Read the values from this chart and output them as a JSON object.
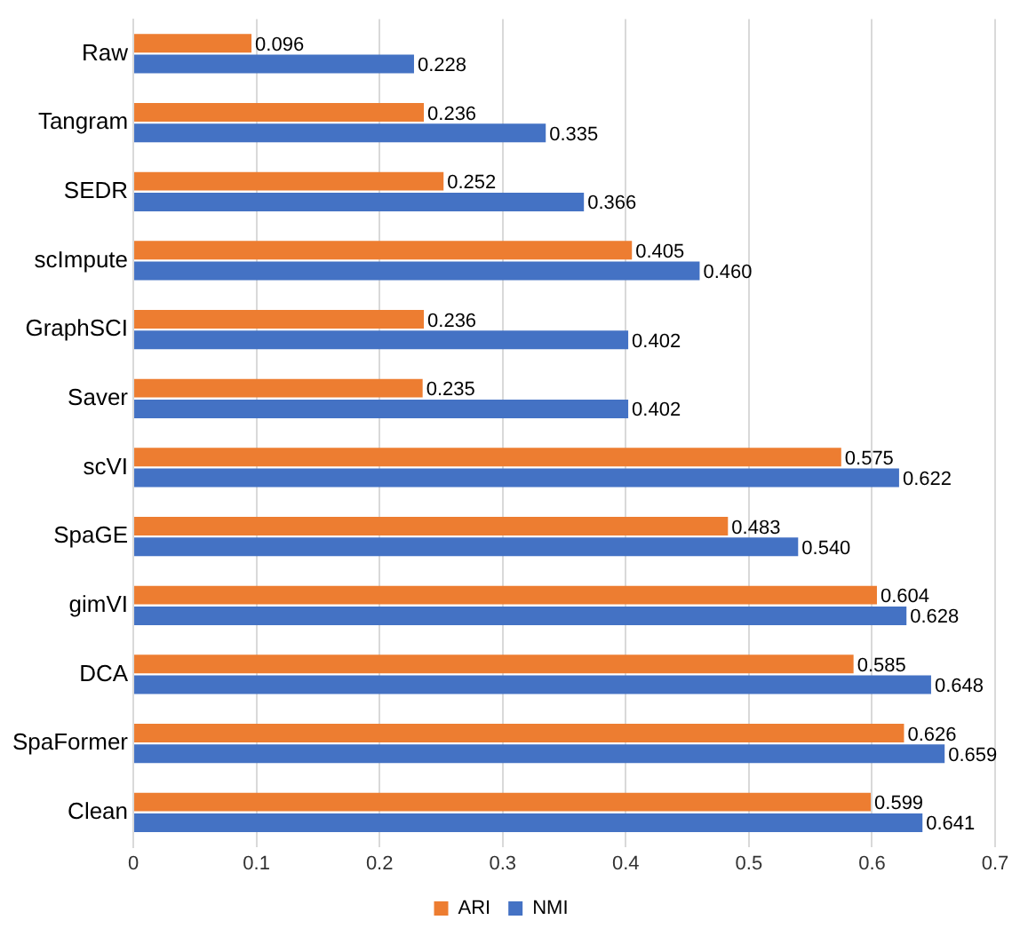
{
  "chart_data": {
    "type": "bar",
    "orientation": "horizontal",
    "categories": [
      "Raw",
      "Tangram",
      "SEDR",
      "scImpute",
      "GraphSCI",
      "Saver",
      "scVI",
      "SpaGE",
      "gimVI",
      "DCA",
      "SpaFormer",
      "Clean"
    ],
    "series": [
      {
        "name": "ARI",
        "color": "#ed7d31",
        "values": [
          0.096,
          0.236,
          0.252,
          0.405,
          0.236,
          0.235,
          0.575,
          0.483,
          0.604,
          0.585,
          0.626,
          0.599
        ],
        "value_labels": [
          "0.096",
          "0.236",
          "0.252",
          "0.405",
          "0.236",
          "0.235",
          "0.575",
          "0.483",
          "0.604",
          "0.585",
          "0.626",
          "0.599"
        ]
      },
      {
        "name": "NMI",
        "color": "#4472c4",
        "values": [
          0.228,
          0.335,
          0.366,
          0.46,
          0.402,
          0.402,
          0.622,
          0.54,
          0.628,
          0.648,
          0.659,
          0.641
        ],
        "value_labels": [
          "0.228",
          "0.335",
          "0.366",
          "0.460",
          "0.402",
          "0.402",
          "0.622",
          "0.540",
          "0.628",
          "0.648",
          "0.659",
          "0.641"
        ]
      }
    ],
    "xlim": [
      0,
      0.7
    ],
    "xticks": [
      0,
      0.1,
      0.2,
      0.3,
      0.4,
      0.5,
      0.6,
      0.7
    ],
    "grid": "x",
    "legend": "bottom"
  }
}
